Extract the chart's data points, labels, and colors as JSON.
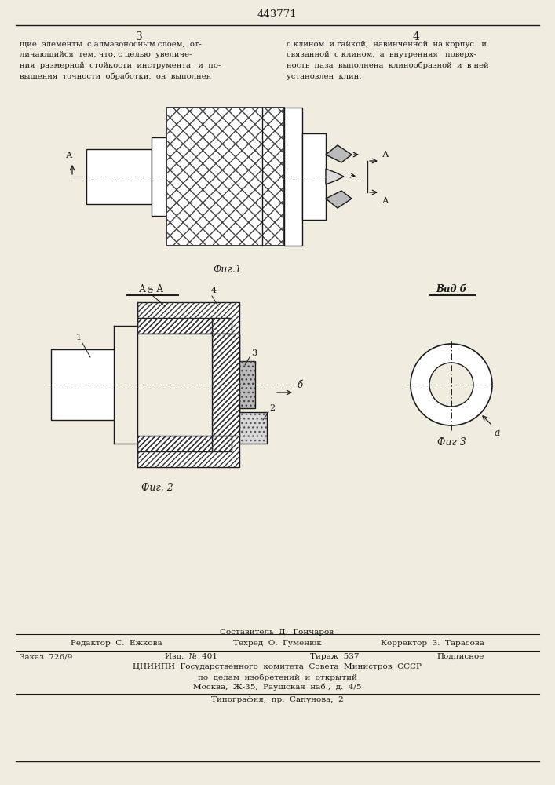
{
  "patent_number": "443771",
  "page_left": "3",
  "page_right": "4",
  "text_left": "щие  элементы  с алмазоносным слоем,  от-\nличающийся  тем, что, с целью  увеличе-\nния  размерной  стойкости  инструмента   и  по-\nвышения  точности  обработки,  он  выполнен",
  "text_right": "с клином  и гайкой,  навинченной  на корпус   и\nсвязанной  с клином,  а  внутренняя   поверх-\nность  паза  выполнена  клинообразной  и  в ней\nустановлен  клин.",
  "fig1_label": "Фиг.1",
  "fig2_label": "Фиг. 2",
  "fig3_label": "Фиг 3",
  "section_label": "А – А",
  "view_label": "Вид б",
  "footer_composer": "Составитель  Д.  Гончаров",
  "footer_editor": "Редактор  С.  Ежкова",
  "footer_tech": "Техред  О.  Гуменюк",
  "footer_corrector": "Корректор  З.  Тарасова",
  "footer_order": "Заказ  726/9",
  "footer_edition": "Изд.  №  401",
  "footer_circulation": "Тираж  537",
  "footer_subscription": "Подписное",
  "footer_cniip": "ЦНИИПИ  Государственного  комитета  Совета  Министров  СССР",
  "footer_subject": "по  делам  изобретений  и  открытий",
  "footer_address": "Москва,  Ж-35,  Раушская  наб.,  д.  4/5",
  "footer_typography": "Типография,  пр.  Сапунова,  2",
  "bg_color": "#f0ede0",
  "line_color": "#1a1a1a"
}
